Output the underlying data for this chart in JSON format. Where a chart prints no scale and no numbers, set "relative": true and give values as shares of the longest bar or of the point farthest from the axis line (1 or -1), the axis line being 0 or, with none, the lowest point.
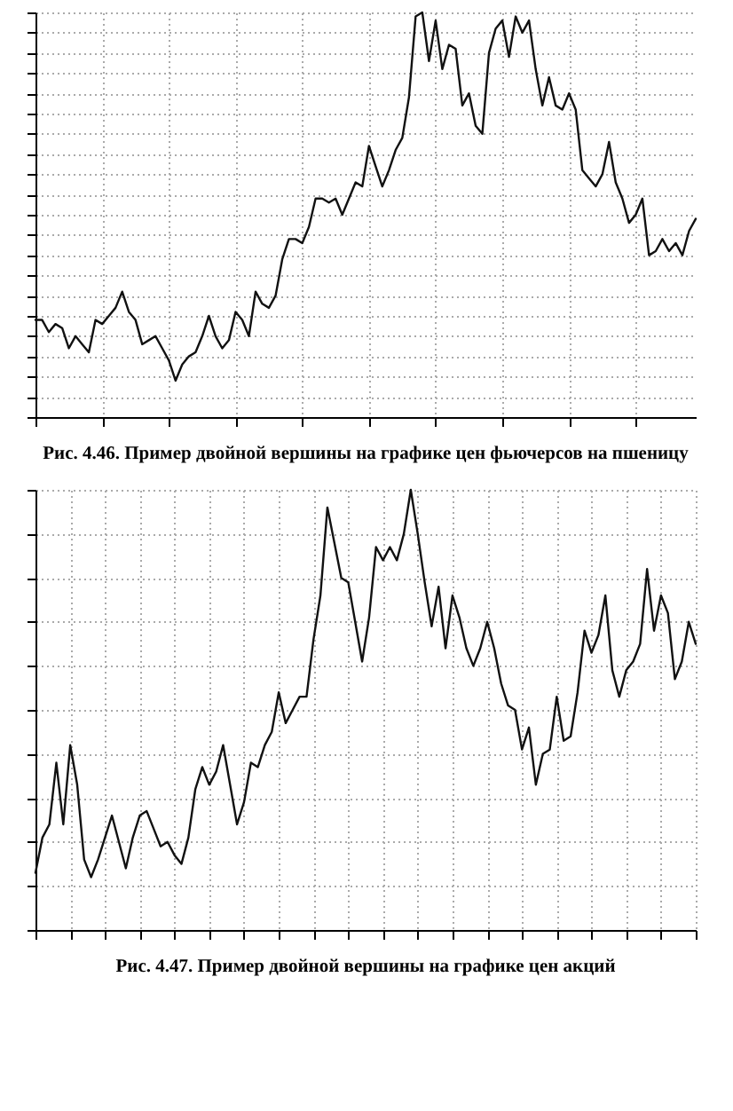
{
  "chart_data": [
    {
      "type": "line",
      "title": "Рис. 4.46. Пример двойной вершины на графике цен фьючерсов на пшеницу",
      "relative": true,
      "grid": true,
      "color": "#111111",
      "categories": [
        null,
        null,
        null,
        null,
        null,
        null,
        null,
        null,
        null,
        null,
        null,
        null,
        null,
        null,
        null,
        null,
        null,
        null,
        null,
        null,
        null,
        null,
        null,
        null,
        null,
        null,
        null,
        null,
        null,
        null,
        null,
        null,
        null,
        null,
        null,
        null,
        null,
        null,
        null,
        null,
        null,
        null,
        null,
        null,
        null,
        null,
        null,
        null,
        null,
        null,
        null,
        null,
        null,
        null,
        null,
        null,
        null,
        null,
        null,
        null,
        null,
        null,
        null,
        null,
        null,
        null,
        null,
        null,
        null,
        null,
        null,
        null,
        null,
        null,
        null,
        null,
        null,
        null,
        null,
        null,
        null,
        null,
        null,
        null,
        null,
        null,
        null,
        null,
        null,
        null,
        null,
        null,
        null,
        null,
        null,
        null,
        null,
        null,
        null,
        null
      ],
      "values": [
        0.24,
        0.24,
        0.21,
        0.23,
        0.22,
        0.17,
        0.2,
        0.18,
        0.16,
        0.24,
        0.23,
        0.25,
        0.27,
        0.31,
        0.26,
        0.24,
        0.18,
        0.19,
        0.2,
        0.17,
        0.14,
        0.09,
        0.13,
        0.15,
        0.16,
        0.2,
        0.25,
        0.2,
        0.17,
        0.19,
        0.26,
        0.24,
        0.2,
        0.31,
        0.28,
        0.27,
        0.3,
        0.39,
        0.44,
        0.44,
        0.43,
        0.47,
        0.54,
        0.54,
        0.53,
        0.54,
        0.5,
        0.54,
        0.58,
        0.57,
        0.67,
        0.62,
        0.57,
        0.61,
        0.66,
        0.69,
        0.79,
        0.99,
        1.0,
        0.88,
        0.98,
        0.86,
        0.92,
        0.91,
        0.77,
        0.8,
        0.72,
        0.7,
        0.9,
        0.96,
        0.98,
        0.89,
        0.99,
        0.95,
        0.98,
        0.86,
        0.77,
        0.84,
        0.77,
        0.76,
        0.8,
        0.76,
        0.61,
        0.59,
        0.57,
        0.6,
        0.68,
        0.58,
        0.54,
        0.48,
        0.5,
        0.54,
        0.4,
        0.41,
        0.44,
        0.41,
        0.43,
        0.4,
        0.46,
        0.49
      ]
    },
    {
      "type": "line",
      "title": "Рис. 4.47. Пример двойной вершины на графике цен акций",
      "relative": true,
      "grid": true,
      "color": "#111111",
      "categories": [
        null,
        null,
        null,
        null,
        null,
        null,
        null,
        null,
        null,
        null,
        null,
        null,
        null,
        null,
        null,
        null,
        null,
        null,
        null,
        null,
        null,
        null,
        null,
        null,
        null,
        null,
        null,
        null,
        null,
        null,
        null,
        null,
        null,
        null,
        null,
        null,
        null,
        null,
        null,
        null,
        null,
        null,
        null,
        null,
        null,
        null,
        null,
        null,
        null,
        null,
        null,
        null,
        null,
        null,
        null,
        null,
        null,
        null,
        null,
        null,
        null,
        null,
        null,
        null,
        null,
        null,
        null,
        null,
        null,
        null,
        null,
        null,
        null,
        null,
        null,
        null,
        null,
        null,
        null,
        null,
        null,
        null,
        null,
        null,
        null,
        null,
        null,
        null,
        null,
        null,
        null,
        null,
        null,
        null,
        null,
        null
      ],
      "values": [
        0.13,
        0.21,
        0.24,
        0.38,
        0.24,
        0.42,
        0.33,
        0.16,
        0.12,
        0.16,
        0.21,
        0.26,
        0.2,
        0.14,
        0.21,
        0.26,
        0.27,
        0.23,
        0.19,
        0.2,
        0.17,
        0.15,
        0.21,
        0.32,
        0.37,
        0.33,
        0.36,
        0.42,
        0.33,
        0.24,
        0.29,
        0.38,
        0.37,
        0.42,
        0.45,
        0.54,
        0.47,
        0.5,
        0.53,
        0.53,
        0.66,
        0.76,
        0.96,
        0.88,
        0.8,
        0.79,
        0.7,
        0.61,
        0.71,
        0.87,
        0.84,
        0.87,
        0.84,
        0.9,
        1.0,
        0.9,
        0.79,
        0.69,
        0.78,
        0.64,
        0.76,
        0.71,
        0.64,
        0.6,
        0.64,
        0.7,
        0.64,
        0.56,
        0.51,
        0.5,
        0.41,
        0.46,
        0.33,
        0.4,
        0.41,
        0.53,
        0.43,
        0.44,
        0.54,
        0.68,
        0.63,
        0.67,
        0.76,
        0.59,
        0.53,
        0.59,
        0.61,
        0.65,
        0.82,
        0.68,
        0.76,
        0.72,
        0.57,
        0.61,
        0.7,
        0.65
      ]
    }
  ]
}
